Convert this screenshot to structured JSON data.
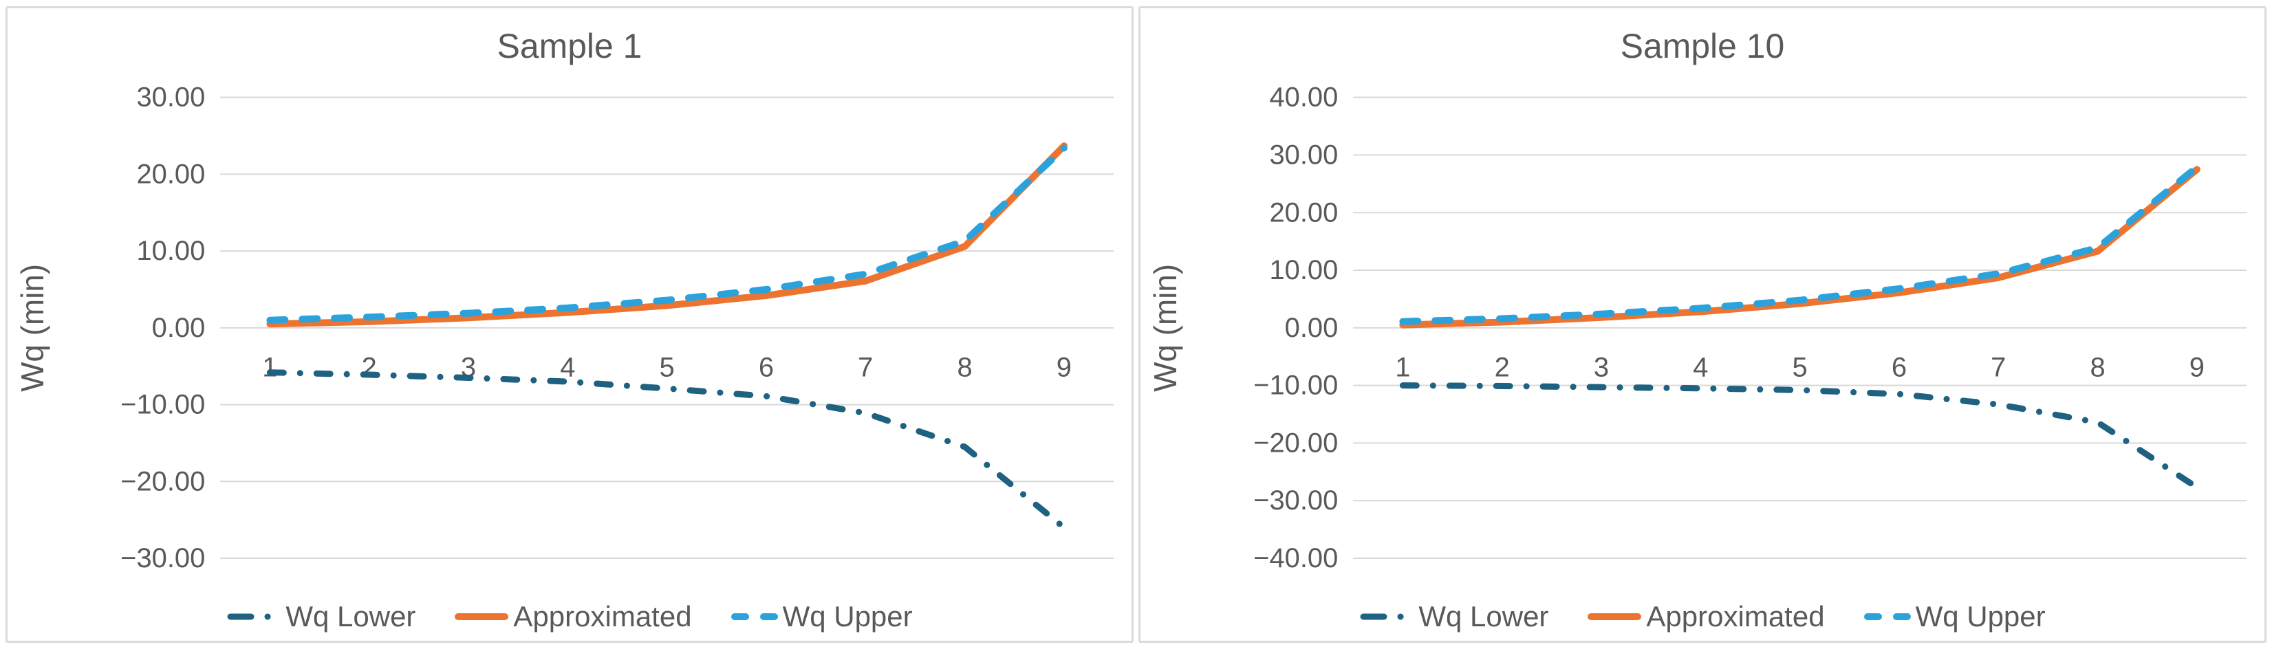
{
  "colors": {
    "wq_lower": "#1F6180",
    "approximated": "#EC7430",
    "wq_upper": "#2BA2DC",
    "gridline": "#D8D8D8",
    "axis_text": "#595959",
    "panel_border": "#DBDBDB",
    "background": "#FFFFFF"
  },
  "chart_data": [
    {
      "type": "line",
      "title": "Sample 1",
      "xlabel": "",
      "ylabel": "Wq (min)",
      "x": [
        "1",
        "2",
        "3",
        "4",
        "5",
        "6",
        "7",
        "8",
        "9"
      ],
      "ylim": [
        -30,
        30
      ],
      "ytick_step": 10,
      "yticks": [
        "30.00",
        "20.00",
        "10.00",
        "0.00",
        "−10.00",
        "−20.00",
        "−30.00"
      ],
      "grid": true,
      "legend_position": "bottom",
      "series": [
        {
          "name": "Wq Lower",
          "style": "dash-dot",
          "color": "#1F6180",
          "values": [
            -5.8,
            -6.1,
            -6.5,
            -7.0,
            -7.9,
            -8.9,
            -11.1,
            -15.5,
            -26.0
          ]
        },
        {
          "name": "Approximated",
          "style": "solid",
          "color": "#EC7430",
          "values": [
            0.5,
            0.8,
            1.3,
            2.0,
            2.9,
            4.2,
            6.1,
            10.6,
            23.7
          ]
        },
        {
          "name": "Wq Upper",
          "style": "dashed",
          "color": "#2BA2DC",
          "values": [
            1.0,
            1.4,
            1.9,
            2.6,
            3.6,
            5.0,
            7.0,
            11.3,
            23.4
          ]
        }
      ]
    },
    {
      "type": "line",
      "title": "Sample 10",
      "xlabel": "",
      "ylabel": "Wq (min)",
      "x": [
        "1",
        "2",
        "3",
        "4",
        "5",
        "6",
        "7",
        "8",
        "9"
      ],
      "ylim": [
        -40,
        40
      ],
      "ytick_step": 10,
      "yticks": [
        "40.00",
        "30.00",
        "20.00",
        "10.00",
        "0.00",
        "−10.00",
        "−20.00",
        "−30.00",
        "−40.00"
      ],
      "grid": true,
      "legend_position": "bottom",
      "series": [
        {
          "name": "Wq Lower",
          "style": "dash-dot",
          "color": "#1F6180",
          "values": [
            -10.0,
            -10.1,
            -10.3,
            -10.5,
            -10.8,
            -11.5,
            -13.3,
            -16.4,
            -27.7
          ]
        },
        {
          "name": "Approximated",
          "style": "solid",
          "color": "#EC7430",
          "values": [
            0.5,
            1.0,
            1.8,
            2.8,
            4.2,
            6.1,
            8.7,
            13.3,
            27.5
          ]
        },
        {
          "name": "Wq Upper",
          "style": "dashed",
          "color": "#2BA2DC",
          "values": [
            1.1,
            1.6,
            2.4,
            3.4,
            4.8,
            6.8,
            9.4,
            13.9,
            27.9
          ]
        }
      ]
    }
  ]
}
